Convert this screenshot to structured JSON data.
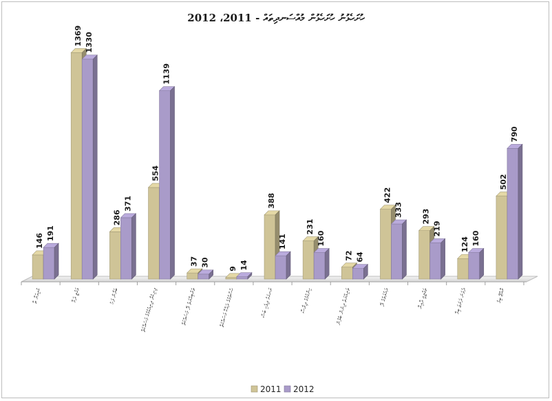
{
  "chart_data": {
    "type": "bar",
    "title": "ހުށަހެޅުނު ހުށަހެޅުން މުއްސަނދިތައް - 2011، 2012",
    "xlabel": "",
    "ylabel": "",
    "ylim": [
      0,
      1400
    ],
    "grid": false,
    "legend": "bottom-center",
    "style": "3d-clustered-column",
    "categories": [
      "ކުރިއަރާ ތާ",
      "ވަގުތީ ދަމާ",
      "ބަޔާން ފަހު",
      "ފިނިކުރާ ދިރިއުޅުމުގެ މަސައްކަތް",
      "ތަރުބިއްޔަތު ދޭ މަސައްކަތް",
      "ހުސްވުމުގެ ދައްކާ މަސައްކަތް",
      "ރަނގަޅު ދިވެހި ބަސް",
      "ހިންގުމުގެ ދިރާސާ",
      "ތަރިއްޔަތު ދިނުން ބެލުން",
      "ދައުލަތުގެ ދޭ",
      "ތަޢުލީމީ ދާއިރާ",
      "ދެވަނަ ދަރަޖަ ބިމާ",
      "ރާއްޖޭ ބިމު"
    ],
    "series": [
      {
        "name": "2011",
        "values": [
          146,
          1369,
          286,
          554,
          37,
          9,
          388,
          231,
          72,
          422,
          293,
          124,
          502
        ]
      },
      {
        "name": "2012",
        "values": [
          191,
          1330,
          371,
          1139,
          30,
          14,
          141,
          160,
          64,
          333,
          219,
          160,
          790
        ]
      }
    ],
    "colors": {
      "2011": "#cfc497",
      "2012": "#a99bc9"
    }
  }
}
